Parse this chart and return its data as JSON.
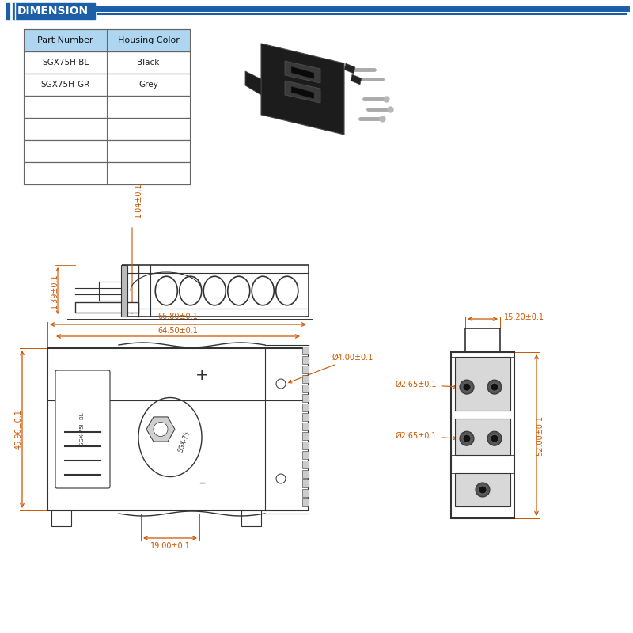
{
  "title": "DIMENSION",
  "title_bg": "#1a5fa8",
  "header_line_color": "#1a5fa8",
  "bg_color": "#ffffff",
  "table_header_bg": "#aed6f1",
  "table_border_color": "#666666",
  "table_headers": [
    "Part Number",
    "Housing Color"
  ],
  "table_rows": [
    [
      "SGX75H-BL",
      "Black"
    ],
    [
      "SGX75H-GR",
      "Grey"
    ],
    [
      "",
      ""
    ],
    [
      "",
      ""
    ],
    [
      "",
      ""
    ],
    [
      "",
      ""
    ]
  ],
  "draw_color": "#333333",
  "dim_line_color": "#cc5500",
  "annotation_color": "#cc5500",
  "black_color": "#111111",
  "side_dim_label": "1.39±0.1",
  "top_dim_label": "1.04±0.1",
  "front_width_label1": "66.80±0.1",
  "front_width_label2": "64.50±0.1",
  "front_height_label": "45.96±0.1",
  "front_bottom_label": "19.00±0.1",
  "front_hole_label": "Ø4.00±0.1",
  "right_width_label": "15.20±0.1",
  "right_height_label": "52.00±0.1",
  "right_hole1_label": "Ø2.65±0.1",
  "right_hole2_label": "Ø2.65±0.1"
}
